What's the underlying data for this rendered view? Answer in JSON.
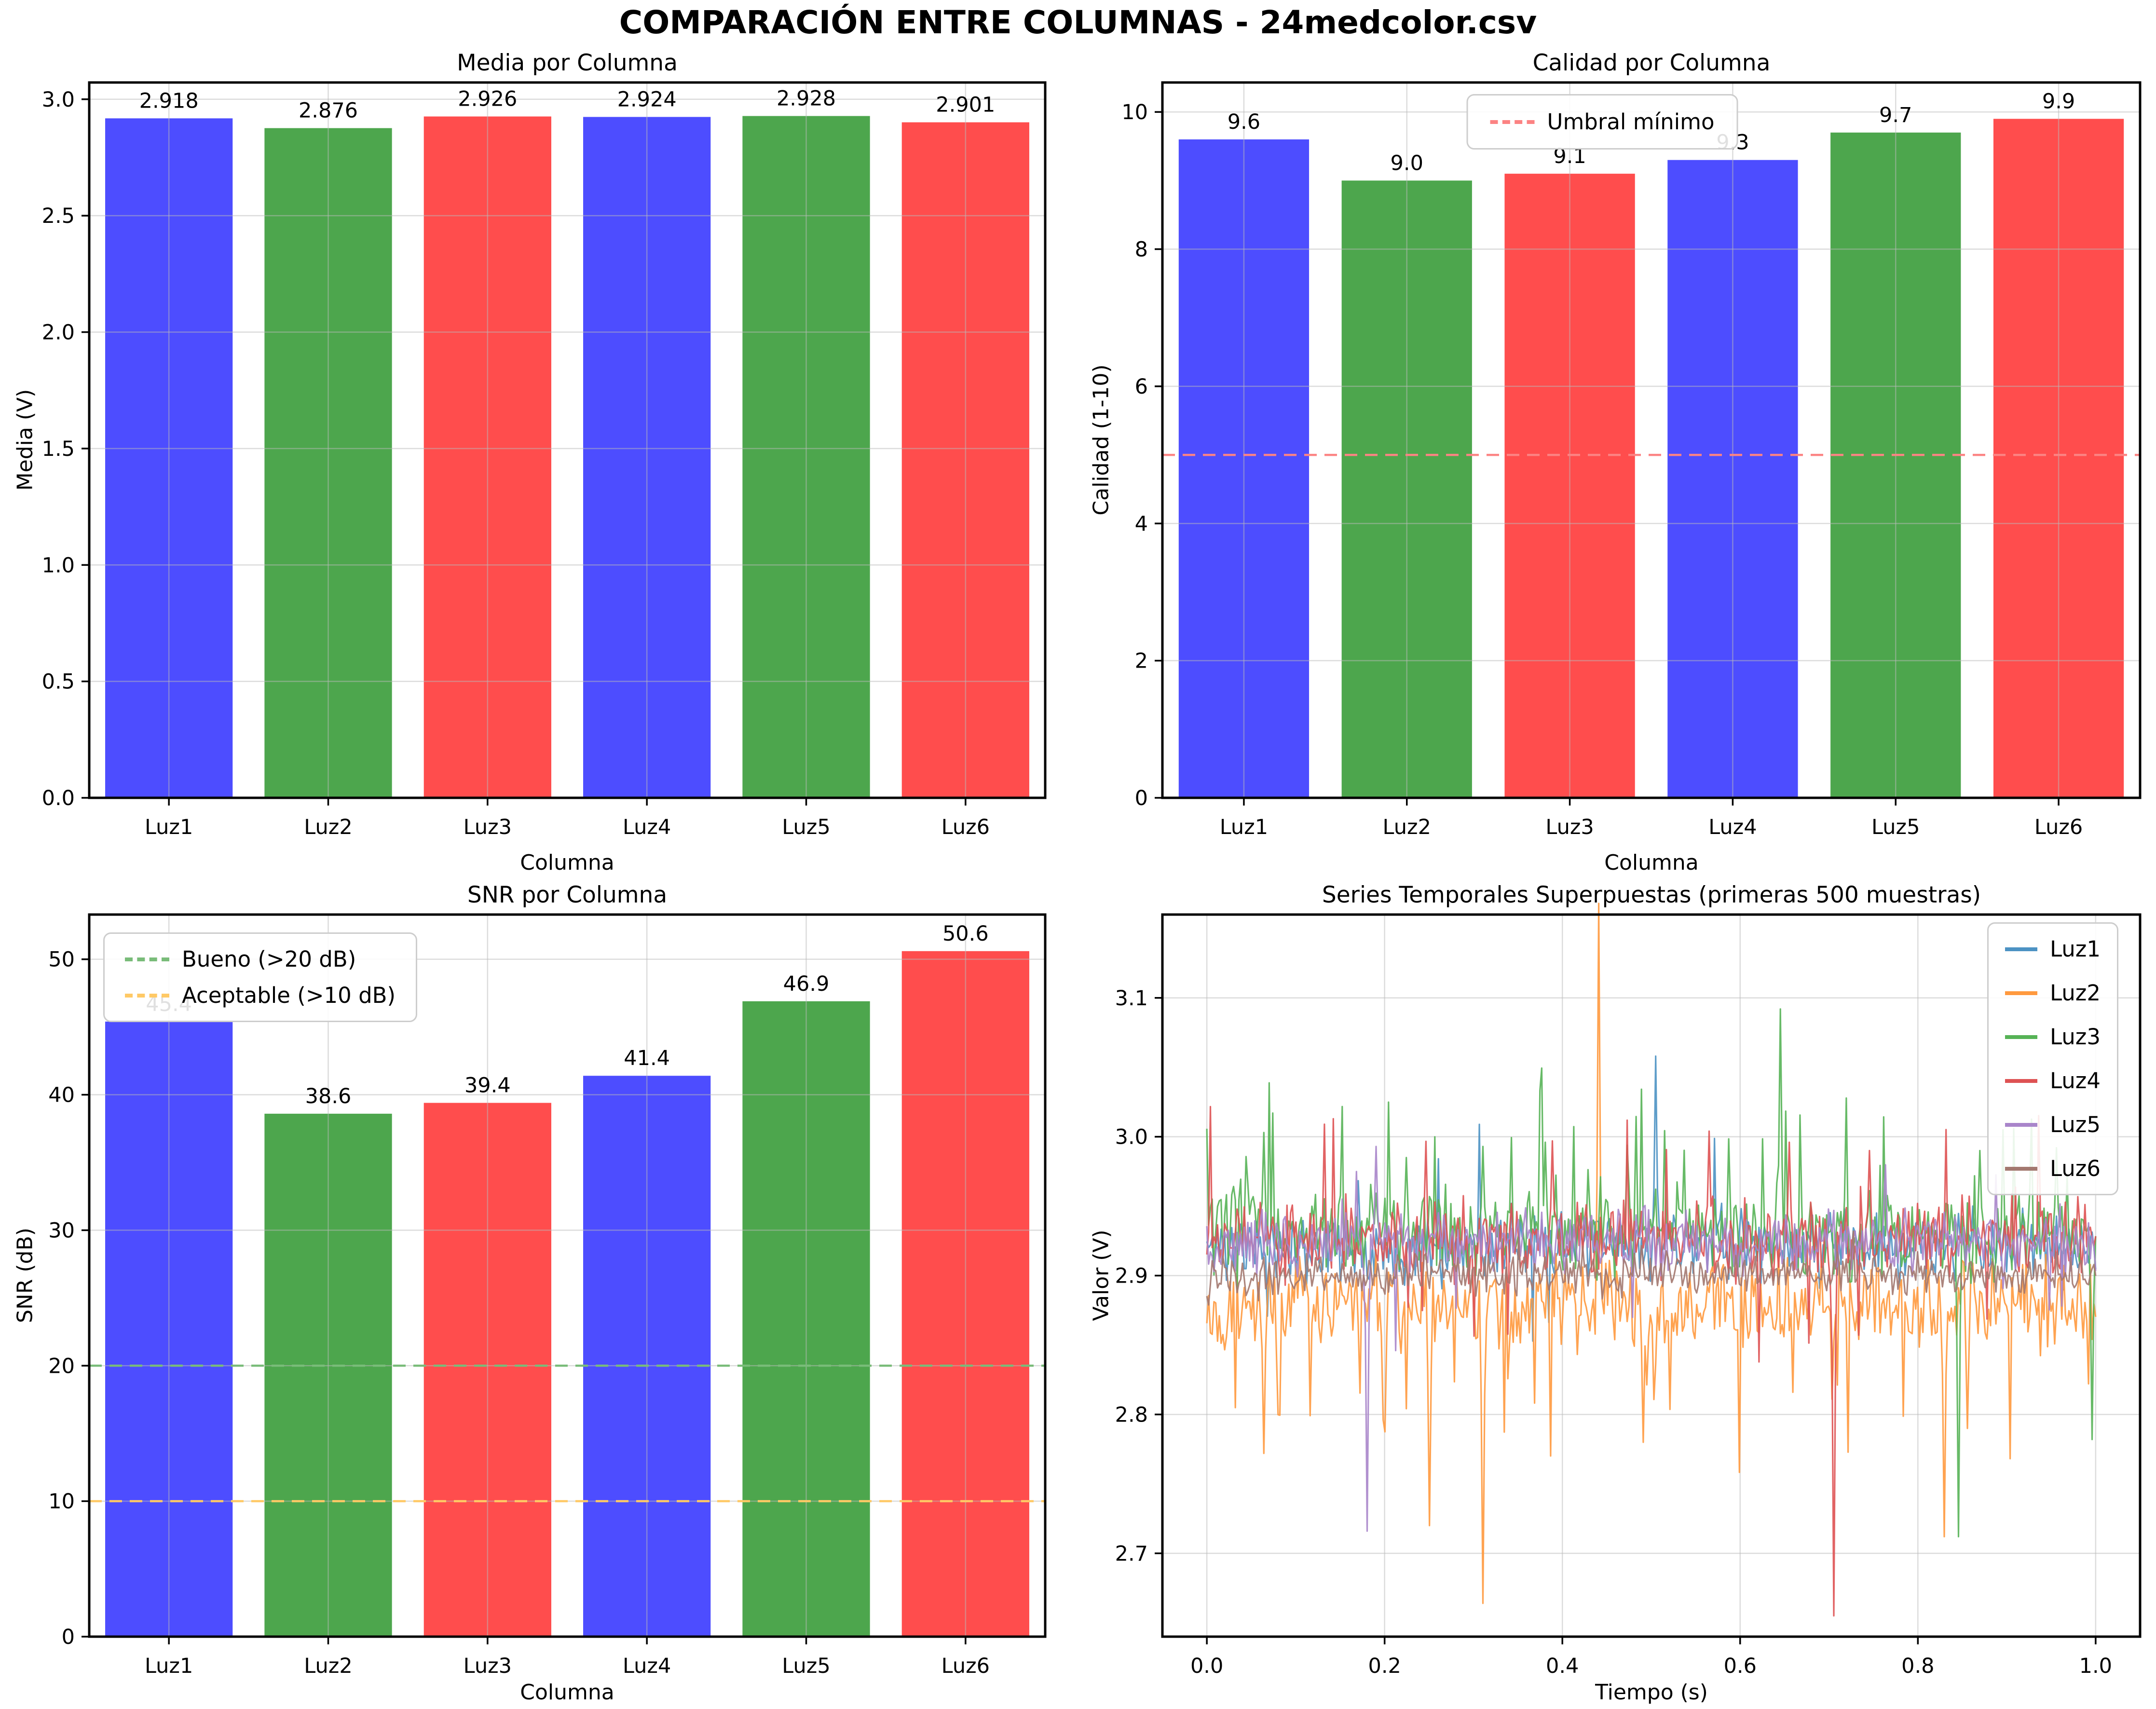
{
  "figure": {
    "title": "COMPARACIÓN ENTRE COLUMNAS - 24medcolor.csv",
    "background": "#ffffff"
  },
  "chart_data": [
    {
      "type": "bar",
      "title": "Media por Columna",
      "xlabel": "Columna",
      "ylabel": "Media (V)",
      "categories": [
        "Luz1",
        "Luz2",
        "Luz3",
        "Luz4",
        "Luz5",
        "Luz6"
      ],
      "values": [
        2.918,
        2.876,
        2.926,
        2.924,
        2.928,
        2.901
      ],
      "value_labels": [
        "2.918",
        "2.876",
        "2.926",
        "2.924",
        "2.928",
        "2.901"
      ],
      "bar_colors": [
        "#4D4DFF",
        "#4DA64D",
        "#FF4D4D",
        "#4D4DFF",
        "#4DA64D",
        "#FF4D4D"
      ],
      "ylim": [
        0,
        3.072
      ],
      "ytick_vals": [
        0.0,
        0.5,
        1.0,
        1.5,
        2.0,
        2.5,
        3.0
      ],
      "ytick_labels": [
        "0.0",
        "0.5",
        "1.0",
        "1.5",
        "2.0",
        "2.5",
        "3.0"
      ],
      "grid": true,
      "thresholds": []
    },
    {
      "type": "bar",
      "title": "Calidad por Columna",
      "xlabel": "Columna",
      "ylabel": "Calidad (1-10)",
      "categories": [
        "Luz1",
        "Luz2",
        "Luz3",
        "Luz4",
        "Luz5",
        "Luz6"
      ],
      "values": [
        9.6,
        9.0,
        9.1,
        9.3,
        9.7,
        9.9
      ],
      "value_labels": [
        "9.6",
        "9.0",
        "9.1",
        "9.3",
        "9.7",
        "9.9"
      ],
      "bar_colors": [
        "#4D4DFF",
        "#4DA64D",
        "#FF4D4D",
        "#4D4DFF",
        "#4DA64D",
        "#FF4D4D"
      ],
      "ylim": [
        0,
        10.43
      ],
      "ytick_vals": [
        0,
        2,
        4,
        6,
        8,
        10
      ],
      "ytick_labels": [
        "0",
        "2",
        "4",
        "6",
        "8",
        "10"
      ],
      "grid": true,
      "thresholds": [
        {
          "value": 5,
          "label": "Umbral mínimo",
          "color": "#FC8383"
        }
      ],
      "legend_loc": "upper-center"
    },
    {
      "type": "bar",
      "title": "SNR por Columna",
      "xlabel": "Columna",
      "ylabel": "SNR (dB)",
      "categories": [
        "Luz1",
        "Luz2",
        "Luz3",
        "Luz4",
        "Luz5",
        "Luz6"
      ],
      "values": [
        45.4,
        38.6,
        39.4,
        41.4,
        46.9,
        50.6
      ],
      "value_labels": [
        "45.4",
        "38.6",
        "39.4",
        "41.4",
        "46.9",
        "50.6"
      ],
      "bar_colors": [
        "#4D4DFF",
        "#4DA64D",
        "#FF4D4D",
        "#4D4DFF",
        "#4DA64D",
        "#FF4D4D"
      ],
      "ylim": [
        0,
        53.3
      ],
      "ytick_vals": [
        0,
        10,
        20,
        30,
        40,
        50
      ],
      "ytick_labels": [
        "0",
        "10",
        "20",
        "30",
        "40",
        "50"
      ],
      "grid": true,
      "thresholds": [
        {
          "value": 20,
          "label": "Bueno (>20 dB)",
          "color": "#79BC79"
        },
        {
          "value": 10,
          "label": "Aceptable (>10 dB)",
          "color": "#FFC966"
        }
      ],
      "legend_loc": "upper-left"
    },
    {
      "type": "line",
      "title": "Series Temporales Superpuestas (primeras 500 muestras)",
      "xlabel": "Tiempo (s)",
      "ylabel": "Valor (V)",
      "n_samples": 500,
      "xlim": [
        -0.05,
        1.05
      ],
      "ylim": [
        2.64,
        3.16
      ],
      "xtick_vals": [
        0.0,
        0.2,
        0.4,
        0.6,
        0.8,
        1.0
      ],
      "xtick_labels": [
        "0.0",
        "0.2",
        "0.4",
        "0.6",
        "0.8",
        "1.0"
      ],
      "ytick_vals": [
        2.7,
        2.8,
        2.9,
        3.0,
        3.1
      ],
      "ytick_labels": [
        "2.7",
        "2.8",
        "2.9",
        "3.0",
        "3.1"
      ],
      "grid": true,
      "legend_loc": "upper-right",
      "series": [
        {
          "name": "Luz1",
          "color": "#4C92C3",
          "mean": 2.921,
          "std": 0.012,
          "tail_prob": 0.012,
          "tail_sign": 0,
          "tail_scale": 2.5,
          "seed": 11,
          "spikes": [
            [
              0.505,
              3.058
            ]
          ]
        },
        {
          "name": "Luz2",
          "color": "#FF993E",
          "mean": 2.879,
          "std": 0.016,
          "tail_prob": 0.06,
          "tail_sign": -1,
          "tail_scale": 2.4,
          "seed": 22,
          "spikes": [
            [
              0.065,
              2.772
            ],
            [
              0.25,
              2.72
            ],
            [
              0.31,
              2.664
            ],
            [
              0.44,
              3.168
            ],
            [
              0.49,
              2.78
            ],
            [
              0.83,
              2.712
            ],
            [
              0.855,
              2.79
            ]
          ]
        },
        {
          "name": "Luz3",
          "color": "#56B356",
          "mean": 2.931,
          "std": 0.015,
          "tail_prob": 0.05,
          "tail_sign": 1,
          "tail_scale": 2.2,
          "seed": 33,
          "spikes": [
            [
              0.065,
              3.003
            ],
            [
              0.225,
              2.985
            ],
            [
              0.31,
              2.993
            ],
            [
              0.38,
              2.996
            ],
            [
              0.645,
              3.092
            ],
            [
              0.845,
              2.712
            ],
            [
              0.87,
              2.99
            ],
            [
              0.955,
              2.992
            ],
            [
              0.995,
              2.782
            ]
          ]
        },
        {
          "name": "Luz4",
          "color": "#DE5253",
          "mean": 2.927,
          "std": 0.014,
          "tail_prob": 0.04,
          "tail_sign": 0,
          "tail_scale": 2.2,
          "seed": 44,
          "spikes": [
            [
              0.565,
              3.004
            ],
            [
              0.655,
              2.996
            ],
            [
              0.705,
              2.655
            ],
            [
              0.745,
              2.99
            ]
          ]
        },
        {
          "name": "Luz5",
          "color": "#A985CA",
          "mean": 2.924,
          "std": 0.011,
          "tail_prob": 0.02,
          "tail_sign": 0,
          "tail_scale": 2.0,
          "seed": 55,
          "spikes": [
            [
              0.18,
              2.716
            ],
            [
              0.19,
              2.993
            ]
          ]
        },
        {
          "name": "Luz6",
          "color": "#A3786F",
          "mean": 2.901,
          "std": 0.007,
          "tail_prob": 0.01,
          "tail_sign": 0,
          "tail_scale": 1.5,
          "seed": 66,
          "spikes": []
        }
      ]
    }
  ]
}
